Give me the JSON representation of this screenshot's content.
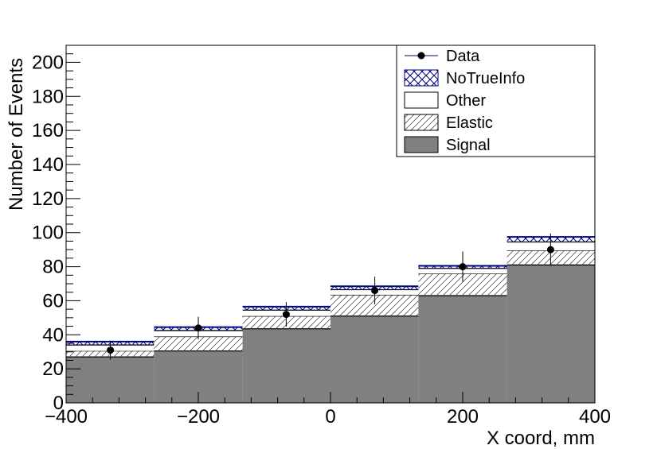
{
  "chart_data": {
    "type": "bar",
    "stacked": true,
    "histogram": true,
    "xlabel": "X coord, mm",
    "ylabel": "Number of Events",
    "xlim": [
      -400,
      400
    ],
    "ylim": [
      0,
      210
    ],
    "bin_edges": [
      -400,
      -267,
      -133,
      0,
      133,
      267,
      400
    ],
    "x_ticks": [
      "−400",
      "−200",
      "0",
      "200",
      "400"
    ],
    "x_tick_values": [
      -400,
      -200,
      0,
      200,
      400
    ],
    "y_ticks": [
      "0",
      "20",
      "40",
      "60",
      "80",
      "100",
      "120",
      "140",
      "160",
      "180",
      "200"
    ],
    "y_tick_values": [
      0,
      20,
      40,
      60,
      80,
      100,
      120,
      140,
      160,
      180,
      200
    ],
    "grid": false,
    "legend_position": "top-right",
    "series": [
      {
        "name": "Signal",
        "style": "filled",
        "color": "#808080",
        "values": [
          27,
          30.5,
          43.5,
          51,
          63,
          81
        ]
      },
      {
        "name": "Elastic",
        "style": "hatched",
        "color": "#000000",
        "values": [
          3.5,
          8.5,
          7.5,
          12.5,
          13,
          8.5
        ]
      },
      {
        "name": "Other",
        "style": "open",
        "color": "#000000",
        "values": [
          3.5,
          3.5,
          3.5,
          3,
          3,
          5
        ]
      },
      {
        "name": "NoTrueInfo",
        "style": "crosshatch",
        "color": "#000080",
        "values": [
          2,
          2,
          2,
          2,
          1.5,
          3
        ]
      }
    ],
    "data_points": {
      "name": "Data",
      "color": "#000000",
      "line_color": "#000080",
      "x": [
        -333,
        -200,
        -67,
        67,
        200,
        333
      ],
      "y": [
        31,
        44,
        52,
        66,
        80,
        90
      ],
      "yerr": [
        5.6,
        6.6,
        7.2,
        8.1,
        8.9,
        9.5
      ]
    },
    "legend_order": [
      "Data",
      "NoTrueInfo",
      "Other",
      "Elastic",
      "Signal"
    ]
  }
}
